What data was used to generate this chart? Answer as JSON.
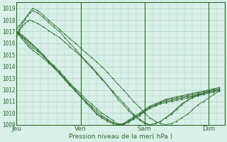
{
  "background_color": "#d8f0e8",
  "plot_bg_color": "#d8f0e8",
  "grid_color": "#aad0c0",
  "line_color": "#2d6a2d",
  "marker_color": "#2d6a2d",
  "ylim": [
    1009,
    1019.5
  ],
  "yticks": [
    1009,
    1010,
    1011,
    1012,
    1013,
    1014,
    1015,
    1016,
    1017,
    1018,
    1019
  ],
  "xlabel": "Pression niveau de la mer( hPa )",
  "xtick_labels": [
    "Jeu",
    "Ven",
    "Sam",
    "Dim"
  ],
  "xlim_days": [
    0,
    3.25
  ],
  "figsize": [
    3.2,
    2.0
  ],
  "dpi": 100,
  "series": [
    {
      "x": [
        0.0,
        0.04,
        0.08,
        0.13,
        0.17,
        0.21,
        0.25,
        0.33,
        0.42,
        0.5,
        0.58,
        0.67,
        0.75,
        0.83,
        0.92,
        1.0,
        1.08,
        1.17,
        1.25,
        1.33,
        1.42,
        1.5,
        1.58,
        1.67,
        1.75,
        1.83,
        1.92,
        2.0,
        2.08,
        2.17,
        2.25,
        2.33,
        2.42,
        2.5,
        2.58,
        2.67,
        2.75,
        2.83,
        2.92,
        3.0,
        3.08,
        3.17
      ],
      "y": [
        1017.0,
        1016.9,
        1016.7,
        1016.5,
        1016.3,
        1016.1,
        1015.9,
        1015.5,
        1015.0,
        1014.5,
        1014.0,
        1013.5,
        1013.0,
        1012.5,
        1012.0,
        1011.5,
        1011.0,
        1010.5,
        1010.0,
        1009.7,
        1009.4,
        1009.2,
        1009.0,
        1009.1,
        1009.3,
        1009.5,
        1009.8,
        1010.1,
        1010.4,
        1010.6,
        1010.8,
        1010.9,
        1011.0,
        1011.1,
        1011.2,
        1011.3,
        1011.4,
        1011.5,
        1011.6,
        1011.7,
        1011.8,
        1011.9
      ]
    },
    {
      "x": [
        0.0,
        0.04,
        0.08,
        0.13,
        0.17,
        0.21,
        0.25,
        0.33,
        0.42,
        0.5,
        0.58,
        0.67,
        0.75,
        0.83,
        0.92,
        1.0,
        1.08,
        1.17,
        1.25,
        1.33,
        1.42,
        1.5,
        1.58,
        1.67,
        1.75,
        1.83,
        1.92,
        2.0,
        2.08,
        2.17,
        2.25,
        2.33,
        2.42,
        2.5,
        2.58,
        2.67,
        2.75,
        2.83,
        2.92,
        3.0,
        3.08,
        3.17
      ],
      "y": [
        1017.0,
        1016.8,
        1016.6,
        1016.4,
        1016.2,
        1016.0,
        1015.8,
        1015.4,
        1014.9,
        1014.4,
        1013.9,
        1013.4,
        1012.9,
        1012.4,
        1011.9,
        1011.4,
        1010.9,
        1010.4,
        1009.9,
        1009.6,
        1009.3,
        1009.1,
        1009.0,
        1009.1,
        1009.4,
        1009.7,
        1010.0,
        1010.3,
        1010.6,
        1010.8,
        1011.0,
        1011.2,
        1011.3,
        1011.4,
        1011.5,
        1011.6,
        1011.7,
        1011.8,
        1011.9,
        1012.0,
        1012.1,
        1012.2
      ]
    },
    {
      "x": [
        0.0,
        0.04,
        0.08,
        0.13,
        0.17,
        0.21,
        0.25,
        0.33,
        0.42,
        0.5,
        0.58,
        0.67,
        0.75,
        0.83,
        0.92,
        1.0,
        1.08,
        1.17,
        1.25,
        1.33,
        1.42,
        1.5,
        1.58,
        1.67,
        1.75,
        1.83,
        1.92,
        2.0,
        2.08,
        2.17,
        2.25,
        2.33,
        2.42,
        2.5,
        2.58,
        2.67,
        2.75,
        2.83,
        2.92,
        3.0,
        3.08,
        3.17
      ],
      "y": [
        1016.8,
        1017.2,
        1017.6,
        1018.0,
        1018.4,
        1018.7,
        1019.0,
        1018.8,
        1018.4,
        1018.0,
        1017.6,
        1017.2,
        1016.8,
        1016.4,
        1016.0,
        1015.6,
        1015.2,
        1014.8,
        1014.4,
        1014.0,
        1013.5,
        1013.0,
        1012.5,
        1012.0,
        1011.5,
        1011.0,
        1010.5,
        1010.0,
        1009.6,
        1009.3,
        1009.1,
        1009.0,
        1009.1,
        1009.3,
        1009.6,
        1009.9,
        1010.3,
        1010.7,
        1011.0,
        1011.3,
        1011.6,
        1011.9
      ]
    },
    {
      "x": [
        0.0,
        0.04,
        0.08,
        0.13,
        0.17,
        0.21,
        0.25,
        0.33,
        0.42,
        0.5,
        0.58,
        0.67,
        0.75,
        0.83,
        0.92,
        1.0,
        1.08,
        1.17,
        1.25,
        1.33,
        1.42,
        1.5,
        1.58,
        1.67,
        1.75,
        1.83,
        1.92,
        2.0,
        2.08,
        2.17,
        2.25,
        2.33,
        2.42,
        2.5,
        2.58,
        2.67,
        2.75,
        2.83,
        2.92,
        3.0,
        3.08,
        3.17
      ],
      "y": [
        1017.2,
        1017.5,
        1017.8,
        1018.1,
        1018.4,
        1018.6,
        1018.8,
        1018.6,
        1018.2,
        1017.8,
        1017.4,
        1017.0,
        1016.5,
        1016.0,
        1015.5,
        1015.0,
        1014.5,
        1014.0,
        1013.5,
        1013.0,
        1012.4,
        1011.8,
        1011.2,
        1010.7,
        1010.2,
        1009.8,
        1009.4,
        1009.1,
        1009.0,
        1009.1,
        1009.3,
        1009.6,
        1009.9,
        1010.3,
        1010.7,
        1011.1,
        1011.4,
        1011.6,
        1011.7,
        1011.8,
        1011.9,
        1012.0
      ]
    },
    {
      "x": [
        0.0,
        0.04,
        0.08,
        0.13,
        0.17,
        0.21,
        0.25,
        0.33,
        0.42,
        0.5,
        0.58,
        0.67,
        0.75,
        0.83,
        0.92,
        1.0,
        1.08,
        1.17,
        1.25,
        1.33,
        1.42,
        1.5,
        1.58,
        1.67,
        1.75,
        1.83,
        1.92,
        2.0,
        2.08,
        2.17,
        2.25,
        2.33,
        2.42,
        2.5,
        2.58,
        2.67,
        2.75,
        2.83,
        2.92,
        3.0,
        3.08,
        3.17
      ],
      "y": [
        1016.5,
        1017.0,
        1017.4,
        1017.7,
        1017.9,
        1018.0,
        1017.9,
        1017.7,
        1017.4,
        1017.1,
        1016.8,
        1016.5,
        1016.1,
        1015.7,
        1015.3,
        1014.9,
        1014.4,
        1013.9,
        1013.4,
        1012.9,
        1012.4,
        1011.9,
        1011.4,
        1010.9,
        1010.4,
        1009.9,
        1009.5,
        1009.2,
        1009.0,
        1009.1,
        1009.3,
        1009.6,
        1010.0,
        1010.4,
        1010.8,
        1011.1,
        1011.3,
        1011.5,
        1011.7,
        1011.9,
        1012.0,
        1012.1
      ]
    },
    {
      "x": [
        0.0,
        0.04,
        0.08,
        0.13,
        0.17,
        0.21,
        0.25,
        0.33,
        0.42,
        0.5,
        0.58,
        0.67,
        0.75,
        0.83,
        0.92,
        1.0,
        1.08,
        1.17,
        1.25,
        1.33,
        1.42,
        1.5,
        1.58,
        1.67,
        1.75,
        1.83,
        1.92,
        2.0,
        2.08,
        2.17,
        2.25,
        2.33,
        2.42,
        2.5,
        2.58,
        2.67,
        2.75,
        2.83,
        2.92,
        3.0,
        3.08,
        3.17
      ],
      "y": [
        1016.9,
        1016.7,
        1016.4,
        1016.1,
        1015.8,
        1015.6,
        1015.4,
        1015.1,
        1014.7,
        1014.3,
        1013.9,
        1013.4,
        1012.9,
        1012.4,
        1011.9,
        1011.5,
        1011.0,
        1010.6,
        1010.2,
        1009.8,
        1009.5,
        1009.2,
        1009.0,
        1009.1,
        1009.3,
        1009.6,
        1009.9,
        1010.2,
        1010.5,
        1010.7,
        1010.9,
        1011.0,
        1011.1,
        1011.2,
        1011.3,
        1011.4,
        1011.5,
        1011.6,
        1011.7,
        1011.8,
        1011.9,
        1012.0
      ]
    },
    {
      "x": [
        0.0,
        0.04,
        0.08,
        0.13,
        0.17,
        0.21,
        0.25,
        0.33,
        0.42,
        0.5,
        0.58,
        0.67,
        0.75,
        0.83,
        0.92,
        1.0,
        1.08,
        1.17,
        1.25,
        1.33,
        1.42,
        1.5,
        1.58,
        1.67,
        1.75,
        1.83,
        1.92,
        2.0,
        2.08,
        2.17,
        2.25,
        2.33,
        2.42,
        2.5,
        2.58,
        2.67,
        2.75,
        2.83,
        2.92,
        3.0,
        3.08,
        3.17
      ],
      "y": [
        1017.0,
        1016.8,
        1016.5,
        1016.3,
        1016.0,
        1015.8,
        1015.6,
        1015.3,
        1014.9,
        1014.5,
        1014.1,
        1013.6,
        1013.1,
        1012.6,
        1012.1,
        1011.7,
        1011.2,
        1010.8,
        1010.4,
        1010.0,
        1009.7,
        1009.4,
        1009.1,
        1009.0,
        1009.2,
        1009.5,
        1009.8,
        1010.2,
        1010.5,
        1010.7,
        1010.9,
        1011.1,
        1011.2,
        1011.3,
        1011.4,
        1011.5,
        1011.6,
        1011.7,
        1011.8,
        1011.9,
        1012.0,
        1012.1
      ]
    }
  ]
}
